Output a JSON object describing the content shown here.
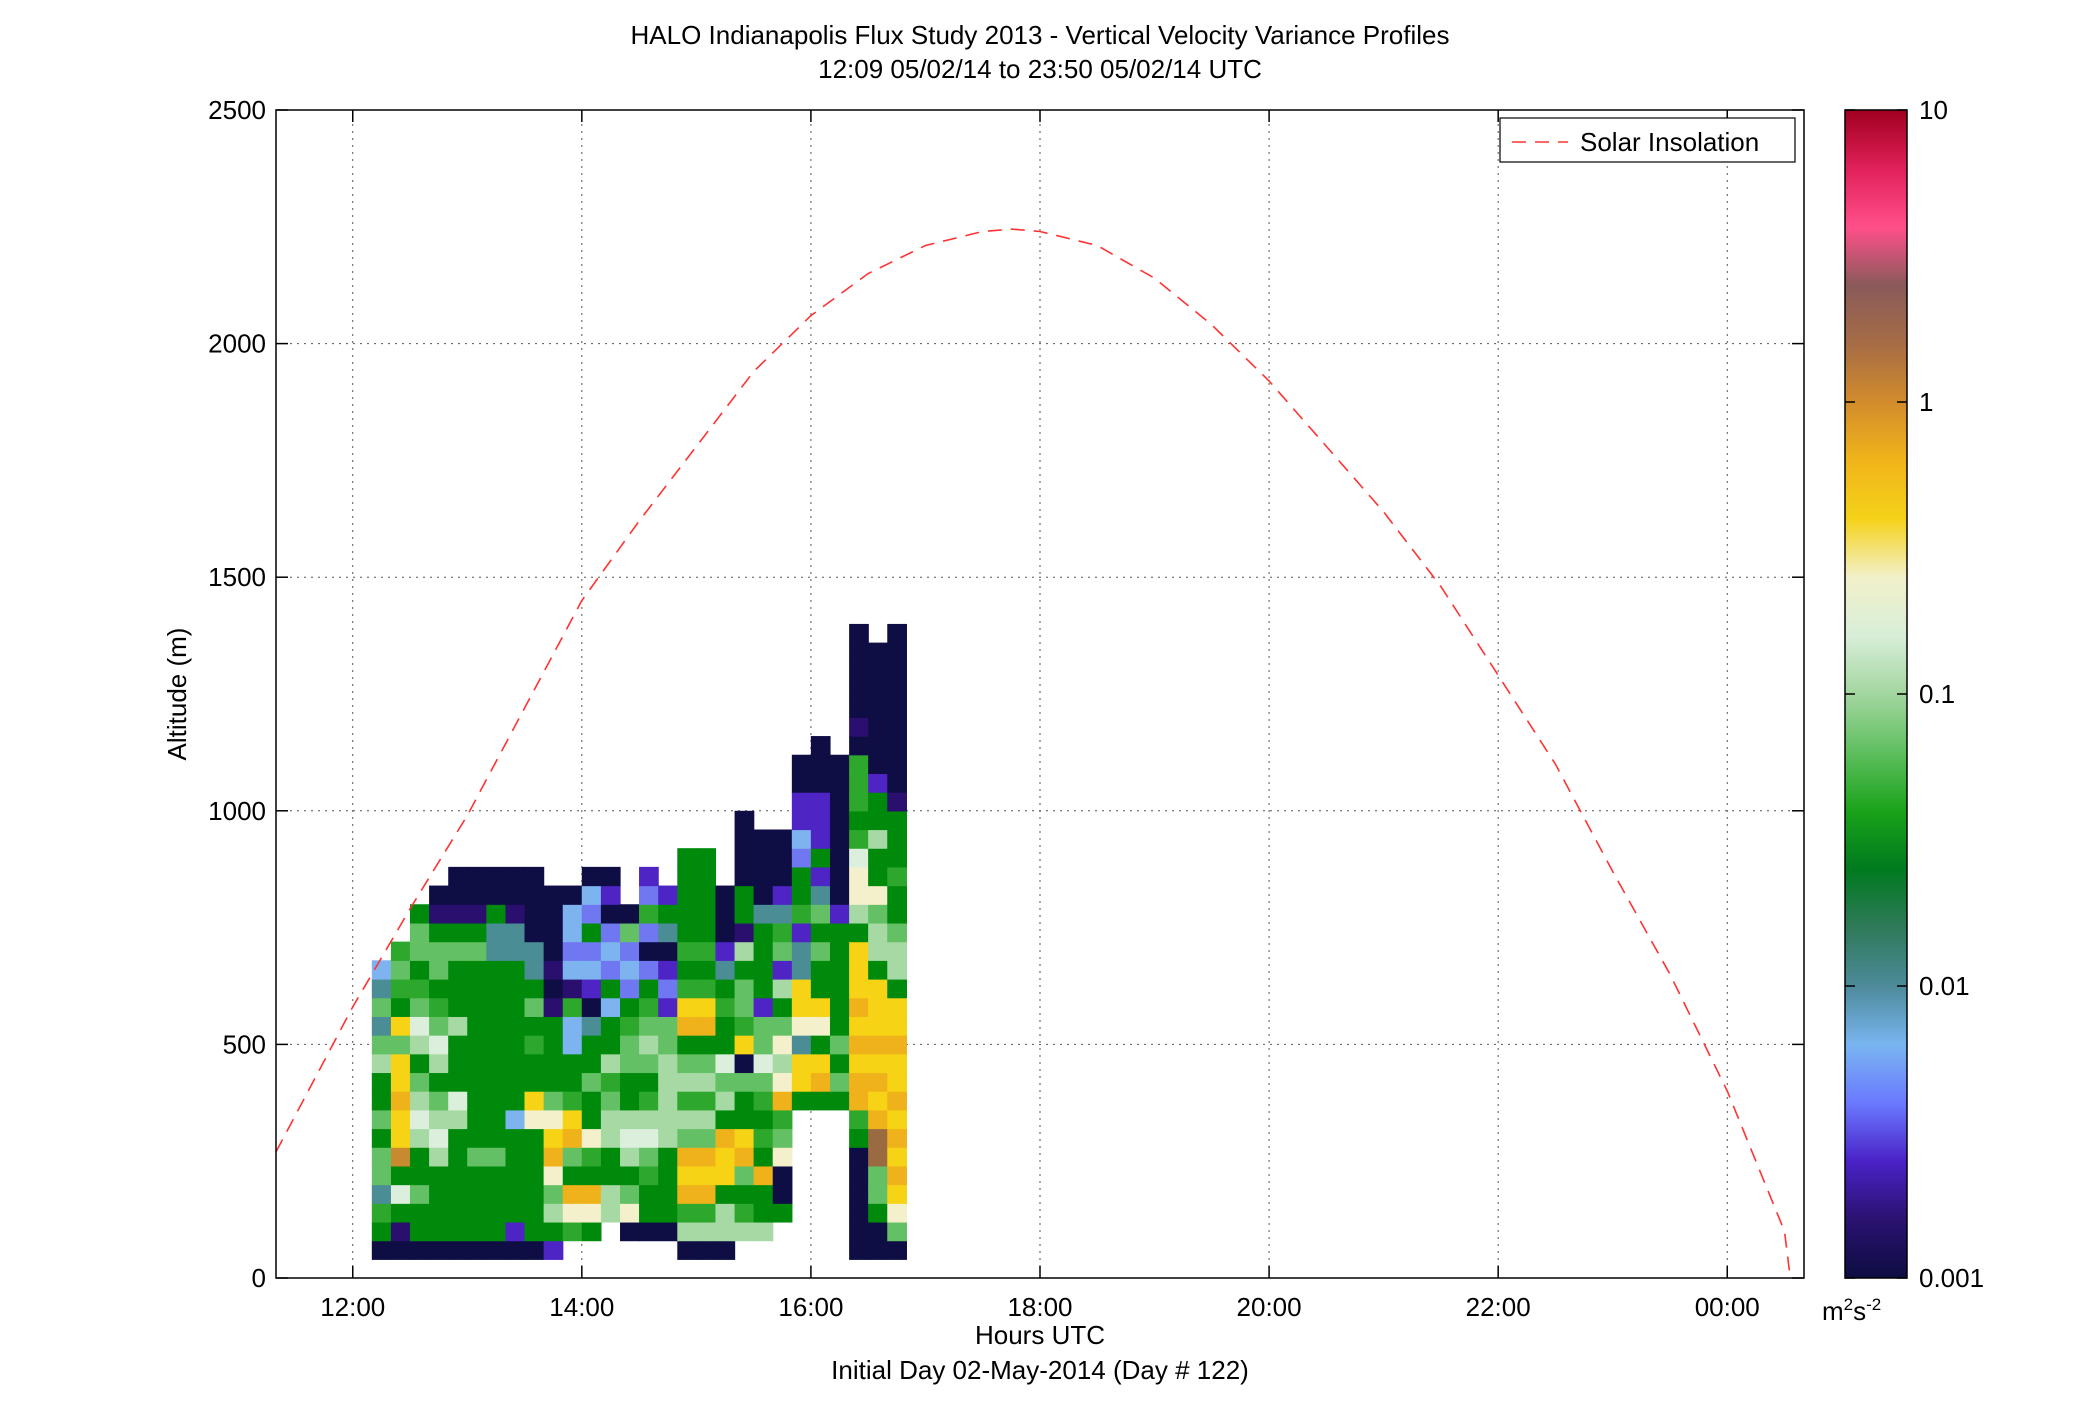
{
  "chart_data": {
    "type": "heatmap",
    "title": "HALO Indianapolis Flux Study 2013 - Vertical Velocity Variance Profiles",
    "subtitle": "12:09 05/02/14 to 23:50 05/02/14  UTC",
    "xlabel": "Hours UTC",
    "xlabel2": "Initial Day 02-May-2014 (Day # 122)",
    "ylabel": "Altitude (m)",
    "xlim": [
      11.33,
      24.67
    ],
    "ylim": [
      0,
      2500
    ],
    "x_ticks": [
      {
        "value": 12,
        "label": "12:00"
      },
      {
        "value": 14,
        "label": "14:00"
      },
      {
        "value": 16,
        "label": "16:00"
      },
      {
        "value": 18,
        "label": "18:00"
      },
      {
        "value": 20,
        "label": "20:00"
      },
      {
        "value": 22,
        "label": "22:00"
      },
      {
        "value": 24,
        "label": "00:00"
      }
    ],
    "y_ticks": [
      {
        "value": 0,
        "label": "0"
      },
      {
        "value": 500,
        "label": "500"
      },
      {
        "value": 1000,
        "label": "1000"
      },
      {
        "value": 1500,
        "label": "1500"
      },
      {
        "value": 2000,
        "label": "2000"
      },
      {
        "value": 2500,
        "label": "2500"
      }
    ],
    "grid": true,
    "legend": {
      "position": "top-right",
      "entries": [
        {
          "name": "Solar Insolation",
          "style": "dashed",
          "color": "#ff3333"
        }
      ]
    },
    "solar_insolation": {
      "x": [
        11.33,
        12.0,
        12.5,
        13.0,
        13.5,
        14.0,
        14.5,
        15.0,
        15.5,
        16.0,
        16.5,
        17.0,
        17.5,
        17.75,
        18.0,
        18.5,
        19.0,
        19.5,
        20.0,
        20.5,
        21.0,
        21.5,
        22.0,
        22.5,
        23.0,
        23.5,
        24.0,
        24.5,
        24.55
      ],
      "y": [
        270,
        580,
        790,
        990,
        1220,
        1450,
        1620,
        1780,
        1940,
        2060,
        2150,
        2210,
        2240,
        2245,
        2240,
        2210,
        2140,
        2040,
        1920,
        1780,
        1640,
        1480,
        1290,
        1100,
        870,
        650,
        400,
        100,
        0
      ]
    },
    "colorbar": {
      "scale": "log",
      "range": [
        0.001,
        10
      ],
      "tick_labels": [
        "10",
        "1",
        "0.1",
        "0.01",
        "0.001"
      ],
      "units_main": "m",
      "units_sup1": "2",
      "units_mid": "s",
      "units_sup2": "-2",
      "colors": [
        "#0d0d42",
        "#2a1270",
        "#4a22c8",
        "#6a7aff",
        "#79b5f0",
        "#4d8a9a",
        "#2f7a5a",
        "#007a1e",
        "#1aa31a",
        "#5fbf5f",
        "#a3d6a0",
        "#d8eed8",
        "#f2f0c9",
        "#f5d21a",
        "#f0b41a",
        "#d28c2c",
        "#a66c46",
        "#8a5a5a",
        "#ff4f8a",
        "#e0205a",
        "#a00020"
      ]
    },
    "bin_width_hours": 0.167,
    "bin_height_m": 40,
    "palette_keys": {
      "N": "#0e0e45",
      "D": "#2a0f6e",
      "P": "#4e24c4",
      "L": "#6f78f0",
      "B": "#7db3ef",
      "T": "#4a8d94",
      "M": "#2e7d54",
      "G": "#008a0c",
      "g": "#2da82d",
      "m": "#64c064",
      "l": "#a6d9a3",
      "w": "#dcefdc",
      "c": "#f4f0cc",
      "y": "#f6d315",
      "o": "#f0b21a",
      "b": "#c88a2e",
      "r": "#9a6a40",
      "s": "#b0b0b0",
      "p": "#e8406e"
    },
    "columns": [
      {
        "x": 12.25,
        "bottom": 40,
        "cells": "NGgTmmGmGGlmTmTB"
      },
      {
        "x": 12.417,
        "bottom": 40,
        "cells": "NDGwGbyyoyymyGgmg"
      },
      {
        "x": 12.583,
        "bottom": 40,
        "cells": "NGGmGGlwlmGlwmgGmmG"
      },
      {
        "x": 12.75,
        "bottom": 40,
        "cells": "NGGGGlwlmGlwmgGmmGDN"
      },
      {
        "x": 12.917,
        "bottom": 40,
        "cells": "NGGGGGGlwGGGlGGGmGDNN"
      },
      {
        "x": 13.083,
        "bottom": 40,
        "cells": "NGGGGmGGGGGGGGGGmGDNN"
      },
      {
        "x": 13.25,
        "bottom": 40,
        "cells": "NGGGGmGGGGGGGGGGTTGNN"
      },
      {
        "x": 13.417,
        "bottom": 40,
        "cells": "NPGGGGGBGGGGGGGGTTDNN"
      },
      {
        "x": 13.583,
        "bottom": 40,
        "cells": "NGGGGGGcyGGgGmGTTNNNN"
      },
      {
        "x": 13.75,
        "bottom": 40,
        "cells": "PGlmcoycmGGGGDNDNNNN"
      },
      {
        "x": 13.917,
        "bottom": 80,
        "cells": "gcoGmoygGGBBgDBLBBN"
      },
      {
        "x": 14.083,
        "bottom": 80,
        "cells": "GcoGgcGGmGGTNPBLGLBN"
      },
      {
        "x": 14.25,
        "bottom": 120,
        "cells": "llGGllmglGGBGLBLNPN"
      },
      {
        "x": 14.417,
        "bottom": 80,
        "cells": "NcmGlwlGGmmgGLBLmN"
      },
      {
        "x": 14.583,
        "bottom": 80,
        "cells": "NGGgmwlgGmlmgGLNLgLP"
      },
      {
        "x": 14.75,
        "bottom": 80,
        "cells": "NGGGGlllllmmPLPNTGP"
      },
      {
        "x": 14.917,
        "bottom": 40,
        "cells": "NlgoyomlglmGoygGgGGGGG"
      },
      {
        "x": 15.083,
        "bottom": 40,
        "cells": "NlgoyomlglmGoygGgGGGGG"
      },
      {
        "x": 15.25,
        "bottom": 40,
        "cells": "NllGyyoGlmwGGgGTPNNN"
      },
      {
        "x": 15.417,
        "bottom": 80,
        "cells": "lgGmoyGGmNygmmGlDGGNNNN"
      },
      {
        "x": 15.583,
        "bottom": 80,
        "cells": "lGGoGgGgmwmmPGGGGTNNNN"
      },
      {
        "x": 15.75,
        "bottom": 120,
        "cells": "GNNcmgoclcmGlPmgTPNNN"
      },
      {
        "x": 15.917,
        "bottom": 360,
        "cells": "GyyTcyyTTPgGGLBPPNN"
      },
      {
        "x": 16.083,
        "bottom": 360,
        "cells": "GoyGcyGGmGmTPGPPPNNN"
      },
      {
        "x": 16.25,
        "bottom": 360,
        "cells": "GmGmGGGGGGPNNNNNNNN"
      },
      {
        "x": 16.417,
        "bottom": 40,
        "cells": "NNNNNNGgooyoyoyyyGlccwgGgggNDNNNNN"
      },
      {
        "x": 16.583,
        "bottom": 40,
        "cells": "NNGmmrroyoyoyyyGllmcGGlGGPNNNNNNN"
      },
      {
        "x": 16.75,
        "bottom": 40,
        "cells": "NmcyoyoyoyyoyyGllmGGgGGGDNNNNNNNNN"
      }
    ],
    "notes": ""
  }
}
